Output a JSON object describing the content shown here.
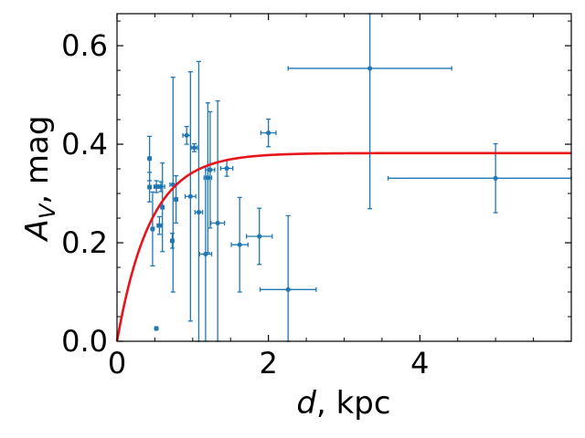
{
  "chart_data": {
    "type": "scatter",
    "xlabel": "d, kpc",
    "ylabel": "A_V, mag",
    "xlabel_parts": {
      "var": "d",
      "unit": ", kpc"
    },
    "ylabel_parts": {
      "var": "A",
      "sub": "V",
      "unit": ", mag"
    },
    "xlim": [
      0,
      6.0
    ],
    "ylim": [
      0,
      0.665
    ],
    "x_ticks": [
      {
        "value": 0,
        "label": "0"
      },
      {
        "value": 2,
        "label": "2"
      },
      {
        "value": 4,
        "label": "4"
      }
    ],
    "y_ticks": [
      {
        "value": 0.0,
        "label": "0.0"
      },
      {
        "value": 0.2,
        "label": "0.2"
      },
      {
        "value": 0.4,
        "label": "0.4"
      },
      {
        "value": 0.6,
        "label": "0.6"
      }
    ],
    "x_minor_step": 0.5,
    "y_minor_step": 0.05,
    "grid": false,
    "colors": {
      "points": "#1f77b4",
      "curve": "#e8141c",
      "axes": "#000000"
    },
    "points": [
      {
        "x": 0.43,
        "y": 0.371,
        "xerr": 0.02,
        "yerr": 0.045
      },
      {
        "x": 0.43,
        "y": 0.313,
        "xerr": 0.02,
        "yerr": 0.03
      },
      {
        "x": 0.47,
        "y": 0.228,
        "xerr": 0.02,
        "yerr": 0.075
      },
      {
        "x": 0.52,
        "y": 0.314,
        "xerr": 0.03,
        "yerr": 0.012
      },
      {
        "x": 0.52,
        "y": 0.026,
        "xerr": 0.02,
        "yerr": 0.0
      },
      {
        "x": 0.56,
        "y": 0.235,
        "xerr": 0.03,
        "yerr": 0.018
      },
      {
        "x": 0.58,
        "y": 0.314,
        "xerr": 0.05,
        "yerr": 0.01
      },
      {
        "x": 0.6,
        "y": 0.272,
        "xerr": 0.02,
        "yerr": 0.09
      },
      {
        "x": 0.73,
        "y": 0.204,
        "xerr": 0.02,
        "yerr": 0.015
      },
      {
        "x": 0.74,
        "y": 0.318,
        "xerr": 0.04,
        "yerr": 0.218
      },
      {
        "x": 0.78,
        "y": 0.288,
        "xerr": 0.02,
        "yerr": 0.048
      },
      {
        "x": 0.92,
        "y": 0.418,
        "xerr": 0.05,
        "yerr": 0.018
      },
      {
        "x": 0.97,
        "y": 0.294,
        "xerr": 0.07,
        "yerr": 0.253
      },
      {
        "x": 1.02,
        "y": 0.393,
        "xerr": 0.04,
        "yerr": 0.008
      },
      {
        "x": 1.08,
        "y": 0.262,
        "xerr": 0.05,
        "yerr": 0.306
      },
      {
        "x": 1.17,
        "y": 0.177,
        "xerr": 0.08,
        "yerr": 0.178
      },
      {
        "x": 1.2,
        "y": 0.332,
        "xerr": 0.05,
        "yerr": 0.152
      },
      {
        "x": 1.23,
        "y": 0.348,
        "xerr": 0.06,
        "yerr": 0.118
      },
      {
        "x": 1.33,
        "y": 0.24,
        "xerr": 0.09,
        "yerr": 0.248
      },
      {
        "x": 1.45,
        "y": 0.351,
        "xerr": 0.08,
        "yerr": 0.016
      },
      {
        "x": 1.62,
        "y": 0.196,
        "xerr": 0.11,
        "yerr": 0.096
      },
      {
        "x": 1.88,
        "y": 0.213,
        "xerr": 0.17,
        "yerr": 0.057
      },
      {
        "x": 2.0,
        "y": 0.423,
        "xerr": 0.1,
        "yerr": 0.028
      },
      {
        "x": 2.26,
        "y": 0.105,
        "xerr": 0.37,
        "yerr": 0.15
      },
      {
        "x": 3.34,
        "y": 0.554,
        "xerr": 1.08,
        "yerr": 0.285
      },
      {
        "x": 5.0,
        "y": 0.331,
        "xerr": 1.42,
        "yerr": 0.07
      }
    ],
    "model": {
      "type": "exponential-saturation",
      "amplitude": 0.382,
      "scale_kpc": 0.44
    }
  }
}
